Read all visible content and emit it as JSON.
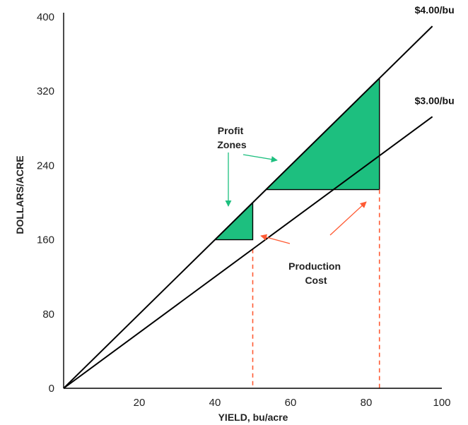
{
  "chart_data": {
    "type": "line",
    "xlabel": "YIELD, bu/acre",
    "ylabel": "DOLLARS/ACRE",
    "xlim": [
      0,
      100
    ],
    "ylim": [
      0,
      400
    ],
    "x_ticks": [
      20,
      40,
      60,
      80,
      100
    ],
    "y_ticks": [
      0,
      80,
      160,
      240,
      320,
      400
    ],
    "grid": false,
    "series": [
      {
        "name": "$4.00/bu",
        "x": [
          0,
          97.5
        ],
        "y": [
          0,
          390
        ],
        "color": "#000000"
      },
      {
        "name": "$3.00/bu",
        "x": [
          0,
          97.5
        ],
        "y": [
          0,
          292.5
        ],
        "color": "#000000"
      }
    ],
    "production_cost_levels": [
      {
        "yield": 50,
        "cost": 160
      },
      {
        "yield": 83.5,
        "cost": 214
      }
    ],
    "profit_zone_color": "#1dbf7f",
    "cost_line_color": "#ff5a33",
    "annotations": {
      "profit": [
        "Profit",
        "Zones"
      ],
      "cost": [
        "Production",
        "Cost"
      ]
    }
  }
}
